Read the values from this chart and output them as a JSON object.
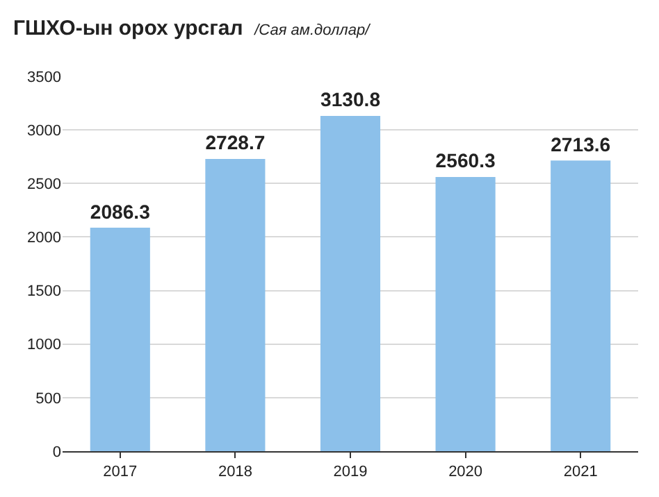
{
  "chart_data": {
    "type": "bar",
    "title": "ГШХО-ын орох урсгал",
    "subtitle": "/Сая ам.доллар/",
    "categories": [
      "2017",
      "2018",
      "2019",
      "2020",
      "2021"
    ],
    "values": [
      2086.3,
      2728.7,
      3130.8,
      2560.3,
      2713.6
    ],
    "color": "#8cc0ea",
    "data_labels": true,
    "ylim": [
      0,
      3500
    ],
    "yticks": [
      0,
      500,
      1000,
      1500,
      2000,
      2500,
      3000,
      3500
    ],
    "grid": "y"
  }
}
